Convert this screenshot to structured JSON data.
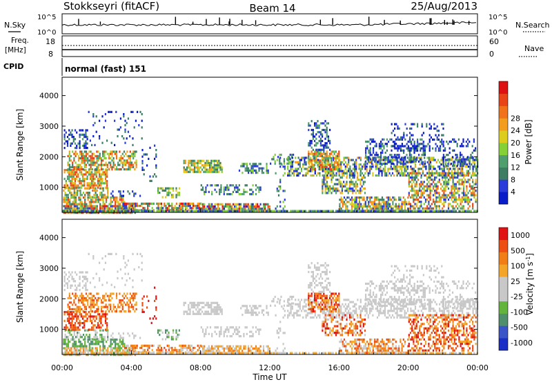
{
  "header": {
    "station": "Stokkseyri (fitACF)",
    "beam": "Beam 14",
    "date": "25/Aug/2013"
  },
  "sky_panel": {
    "left_label": "N.Sky",
    "right_label": "N.Search",
    "ticks_left": [
      "10^5",
      "10^0"
    ],
    "ticks_right": [
      "10^5",
      "10^0"
    ]
  },
  "freq_panel": {
    "left_label_1": "Freq.",
    "left_label_2": "[MHz]",
    "ticks_left": [
      "18",
      "8"
    ],
    "right_label": "Nave",
    "ticks_right": [
      "60",
      "0"
    ]
  },
  "cpid_panel": {
    "label": "CPID",
    "text": "normal (fast) 151"
  },
  "colors": {
    "power": [
      "#0a1cc8",
      "#2a3bd9",
      "#3d7d63",
      "#4f9f6e",
      "#85cf37",
      "#dccc1c",
      "#f39d1e",
      "#f0721a",
      "#e84418",
      "#dd1111"
    ],
    "velocity": [
      "#1b2fc6",
      "#3b55c8",
      "#4f8f6b",
      "#62b43c",
      "#c8c8c8",
      "#c8c8c8",
      "#f3a52a",
      "#f07d16",
      "#ec4e14",
      "#e01212"
    ]
  },
  "chart_data": [
    {
      "type": "heatmap",
      "name": "power",
      "ylabel": "Slant Range [km]",
      "yticks": [
        1000,
        2000,
        3000,
        4000
      ],
      "ylim": [
        180,
        4600
      ],
      "xlim": [
        0,
        24
      ],
      "colorbar": {
        "label": "Power [dB]",
        "tick_labels": [
          "4",
          "8",
          "12",
          "16",
          "20",
          "24",
          "28"
        ],
        "range": [
          0,
          32
        ]
      }
    },
    {
      "type": "heatmap",
      "name": "velocity",
      "ylabel": "Slant Range [km]",
      "yticks": [
        1000,
        2000,
        3000,
        4000
      ],
      "ylim": [
        180,
        4600
      ],
      "xlim": [
        0,
        24
      ],
      "colorbar": {
        "label": "Velocity [m s",
        "label_sup": "-1",
        "label_end": "]",
        "tick_labels": [
          "1000",
          "500",
          "100",
          "25",
          "-25",
          "-100",
          "-500",
          "-1000"
        ]
      }
    }
  ],
  "xaxis": {
    "label": "Time UT",
    "ticks": [
      "00:00",
      "04:00",
      "08:00",
      "12:00",
      "16:00",
      "20:00",
      "00:00"
    ]
  }
}
